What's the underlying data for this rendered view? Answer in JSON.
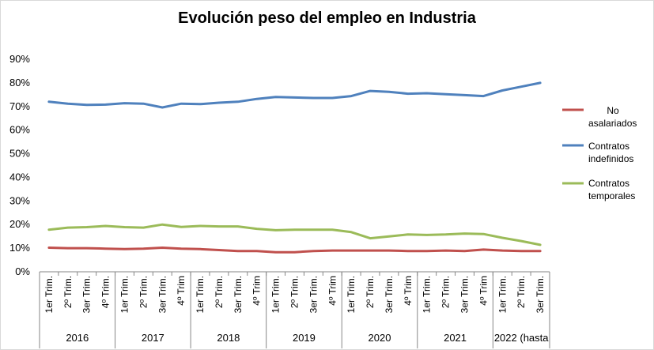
{
  "chart_data": {
    "type": "line",
    "title": "Evolución peso del empleo en Industria",
    "xlabel": "",
    "ylabel": "",
    "ylim": [
      0,
      90
    ],
    "yticks": [
      "0%",
      "10%",
      "20%",
      "30%",
      "40%",
      "50%",
      "60%",
      "70%",
      "80%",
      "90%"
    ],
    "categories": [
      "1er Trim.",
      "2º Trim.",
      "3er Trim.",
      "4º Trim.",
      "1er Trim.",
      "2º Trim.",
      "3er Trim.",
      "4º Trim",
      "1er Trim.",
      "2º Trim.",
      "3er Trim.",
      "4º Trim",
      "1er Trim.",
      "2º Trim.",
      "3er Trim.",
      "4º Trim",
      "1er Trim.",
      "2º Trim.",
      "3er Trim.",
      "4º Trim",
      "1er Trim.",
      "2º Trim.",
      "3er Trim.",
      "4º Trim",
      "1er Trim.",
      "2º Trim.",
      "3er Trim."
    ],
    "groups": [
      {
        "label": "2016",
        "count": 4
      },
      {
        "label": "2017",
        "count": 4
      },
      {
        "label": "2018",
        "count": 4
      },
      {
        "label": "2019",
        "count": 4
      },
      {
        "label": "2020",
        "count": 4
      },
      {
        "label": "2021",
        "count": 4
      },
      {
        "label": "2022 (hasta",
        "count": 3
      }
    ],
    "series": [
      {
        "name": "No asalariados",
        "color": "#c0504d",
        "values": [
          10.2,
          10.0,
          10.0,
          9.8,
          9.6,
          9.8,
          10.2,
          9.8,
          9.6,
          9.2,
          8.8,
          8.8,
          8.3,
          8.3,
          8.8,
          9.0,
          9.0,
          9.0,
          9.0,
          8.8,
          8.8,
          9.0,
          8.8,
          9.4,
          9.0,
          8.8,
          8.8
        ]
      },
      {
        "name": "Contratos indefinidos",
        "color": "#4f81bd",
        "values": [
          72.0,
          71.2,
          70.7,
          70.8,
          71.4,
          71.2,
          69.6,
          71.2,
          71.0,
          71.6,
          72.0,
          73.2,
          74.0,
          73.8,
          73.6,
          73.6,
          74.4,
          76.6,
          76.2,
          75.4,
          75.6,
          75.2,
          74.8,
          74.4,
          76.8,
          78.4,
          80.0
        ]
      },
      {
        "name": "Contratos temporales",
        "color": "#9bbb59",
        "values": [
          17.8,
          18.7,
          18.9,
          19.4,
          18.9,
          18.7,
          20.0,
          19.0,
          19.4,
          19.2,
          19.2,
          18.2,
          17.6,
          17.8,
          17.8,
          17.8,
          16.8,
          14.2,
          15.0,
          15.8,
          15.6,
          15.8,
          16.2,
          16.0,
          14.4,
          13.0,
          11.4
        ]
      }
    ],
    "legend_position": "right",
    "grid": false
  }
}
